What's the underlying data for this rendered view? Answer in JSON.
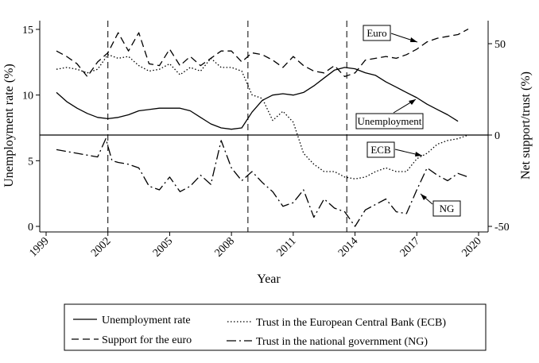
{
  "chart_data": {
    "type": "line",
    "x_label": "Year",
    "y_left_label": "Unemployment rate (%)",
    "y_right_label": "Net support/trust (%)",
    "x_ticks": [
      1999,
      2002,
      2005,
      2008,
      2011,
      2014,
      2017,
      2020
    ],
    "x_range": [
      1999,
      2020
    ],
    "y_left_ticks": [
      0,
      5,
      10,
      15
    ],
    "y_left_range": [
      -0.5,
      16
    ],
    "y_right_ticks": [
      -50,
      0,
      50
    ],
    "y_right_range": [
      -51,
      62
    ],
    "vertical_lines": [
      2002.0,
      2008.8,
      2013.6
    ],
    "zero_line_right": 0,
    "series": [
      {
        "name": "Unemployment rate",
        "key": "unemployment",
        "axis": "left",
        "dash": "solid",
        "points": [
          [
            1999.5,
            10.2
          ],
          [
            2000,
            9.5
          ],
          [
            2000.5,
            9.0
          ],
          [
            2001,
            8.6
          ],
          [
            2001.5,
            8.3
          ],
          [
            2002,
            8.2
          ],
          [
            2002.5,
            8.3
          ],
          [
            2003,
            8.5
          ],
          [
            2003.5,
            8.8
          ],
          [
            2004,
            8.9
          ],
          [
            2004.5,
            9.0
          ],
          [
            2005,
            9.0
          ],
          [
            2005.5,
            9.0
          ],
          [
            2006,
            8.8
          ],
          [
            2006.5,
            8.3
          ],
          [
            2007,
            7.8
          ],
          [
            2007.5,
            7.5
          ],
          [
            2008,
            7.4
          ],
          [
            2008.5,
            7.5
          ],
          [
            2009,
            8.7
          ],
          [
            2009.5,
            9.6
          ],
          [
            2010,
            10.0
          ],
          [
            2010.5,
            10.1
          ],
          [
            2011,
            10.0
          ],
          [
            2011.5,
            10.2
          ],
          [
            2012,
            10.7
          ],
          [
            2012.5,
            11.3
          ],
          [
            2013,
            11.9
          ],
          [
            2013.5,
            12.1
          ],
          [
            2014,
            12.0
          ],
          [
            2014.5,
            11.7
          ],
          [
            2015,
            11.5
          ],
          [
            2015.5,
            11.0
          ],
          [
            2016,
            10.6
          ],
          [
            2016.5,
            10.2
          ],
          [
            2017,
            9.8
          ],
          [
            2017.5,
            9.3
          ],
          [
            2018,
            8.9
          ],
          [
            2018.5,
            8.5
          ],
          [
            2019,
            8.0
          ]
        ]
      },
      {
        "name": "Support for the euro",
        "key": "euro",
        "axis": "right",
        "dash": "dash",
        "points": [
          [
            1999.5,
            46
          ],
          [
            2000,
            43
          ],
          [
            2000.5,
            39
          ],
          [
            2001,
            32
          ],
          [
            2001.5,
            40
          ],
          [
            2002,
            45
          ],
          [
            2002.5,
            56
          ],
          [
            2003,
            46
          ],
          [
            2003.5,
            56
          ],
          [
            2004,
            39
          ],
          [
            2004.5,
            38
          ],
          [
            2005,
            47
          ],
          [
            2005.5,
            38
          ],
          [
            2006,
            43
          ],
          [
            2006.5,
            38
          ],
          [
            2007,
            42
          ],
          [
            2007.5,
            46
          ],
          [
            2008,
            46
          ],
          [
            2008.5,
            40
          ],
          [
            2009,
            45
          ],
          [
            2009.5,
            44
          ],
          [
            2010,
            41
          ],
          [
            2010.5,
            37
          ],
          [
            2011,
            43
          ],
          [
            2011.5,
            38
          ],
          [
            2012,
            35
          ],
          [
            2012.5,
            34
          ],
          [
            2013,
            38
          ],
          [
            2013.5,
            32
          ],
          [
            2014,
            34
          ],
          [
            2014.5,
            41
          ],
          [
            2015,
            42
          ],
          [
            2015.5,
            43
          ],
          [
            2016,
            42
          ],
          [
            2016.5,
            44
          ],
          [
            2017,
            47
          ],
          [
            2017.5,
            51
          ],
          [
            2018,
            53
          ],
          [
            2018.5,
            54
          ],
          [
            2019,
            55
          ],
          [
            2019.5,
            58
          ]
        ]
      },
      {
        "name": "Trust in the European Central Bank (ECB)",
        "key": "ecb",
        "axis": "right",
        "dash": "dot",
        "points": [
          [
            1999.5,
            36
          ],
          [
            2000,
            37
          ],
          [
            2000.5,
            36
          ],
          [
            2001,
            34
          ],
          [
            2001.5,
            36
          ],
          [
            2002,
            44
          ],
          [
            2002.5,
            42
          ],
          [
            2003,
            43
          ],
          [
            2003.5,
            38
          ],
          [
            2004,
            35
          ],
          [
            2004.5,
            36
          ],
          [
            2005,
            39
          ],
          [
            2005.5,
            33
          ],
          [
            2006,
            37
          ],
          [
            2006.5,
            35
          ],
          [
            2007,
            42
          ],
          [
            2007.5,
            37
          ],
          [
            2008,
            37
          ],
          [
            2008.5,
            35
          ],
          [
            2009,
            22
          ],
          [
            2009.5,
            20
          ],
          [
            2010,
            8
          ],
          [
            2010.5,
            13
          ],
          [
            2011,
            7
          ],
          [
            2011.5,
            -10
          ],
          [
            2012,
            -16
          ],
          [
            2012.5,
            -20
          ],
          [
            2013,
            -20
          ],
          [
            2013.5,
            -23
          ],
          [
            2014,
            -24
          ],
          [
            2014.5,
            -23
          ],
          [
            2015,
            -20
          ],
          [
            2015.5,
            -18
          ],
          [
            2016,
            -20
          ],
          [
            2016.5,
            -20
          ],
          [
            2017,
            -13
          ],
          [
            2017.5,
            -10
          ],
          [
            2018,
            -5
          ],
          [
            2018.5,
            -3
          ],
          [
            2019,
            -2
          ],
          [
            2019.5,
            0
          ]
        ]
      },
      {
        "name": "Trust in the national government (NG)",
        "key": "ng",
        "axis": "right",
        "dash": "dashdot",
        "points": [
          [
            1999.5,
            -8
          ],
          [
            2000,
            -9
          ],
          [
            2000.5,
            -10
          ],
          [
            2001,
            -11
          ],
          [
            2001.5,
            -12
          ],
          [
            2001.9,
            -2
          ],
          [
            2002.2,
            -14
          ],
          [
            2002.5,
            -15
          ],
          [
            2003,
            -16
          ],
          [
            2003.5,
            -18
          ],
          [
            2004,
            -28
          ],
          [
            2004.5,
            -30
          ],
          [
            2005,
            -23
          ],
          [
            2005.5,
            -31
          ],
          [
            2006,
            -28
          ],
          [
            2006.5,
            -22
          ],
          [
            2007,
            -27
          ],
          [
            2007.5,
            -3
          ],
          [
            2008,
            -18
          ],
          [
            2008.5,
            -25
          ],
          [
            2009,
            -20
          ],
          [
            2009.5,
            -26
          ],
          [
            2010,
            -31
          ],
          [
            2010.5,
            -39
          ],
          [
            2011,
            -37
          ],
          [
            2011.5,
            -30
          ],
          [
            2012,
            -45
          ],
          [
            2012.5,
            -35
          ],
          [
            2013,
            -40
          ],
          [
            2013.5,
            -42
          ],
          [
            2014,
            -50
          ],
          [
            2014.5,
            -41
          ],
          [
            2015,
            -38
          ],
          [
            2015.5,
            -35
          ],
          [
            2016,
            -42
          ],
          [
            2016.5,
            -43
          ],
          [
            2017,
            -30
          ],
          [
            2017.5,
            -18
          ],
          [
            2018,
            -22
          ],
          [
            2018.5,
            -25
          ],
          [
            2019,
            -21
          ],
          [
            2019.5,
            -23
          ]
        ]
      }
    ],
    "annotations": [
      {
        "label": "Euro",
        "series": "euro"
      },
      {
        "label": "Unemployment",
        "series": "unemployment"
      },
      {
        "label": "ECB",
        "series": "ecb"
      },
      {
        "label": "NG",
        "series": "ng"
      }
    ],
    "legend": {
      "placement": "bottom",
      "items": [
        {
          "label": "Unemployment rate",
          "dash": "solid"
        },
        {
          "label": "Trust in the European Central Bank (ECB)",
          "dash": "dot"
        },
        {
          "label": "Support for the euro",
          "dash": "dash"
        },
        {
          "label": "Trust in the national government (NG)",
          "dash": "dashdot"
        }
      ]
    }
  }
}
